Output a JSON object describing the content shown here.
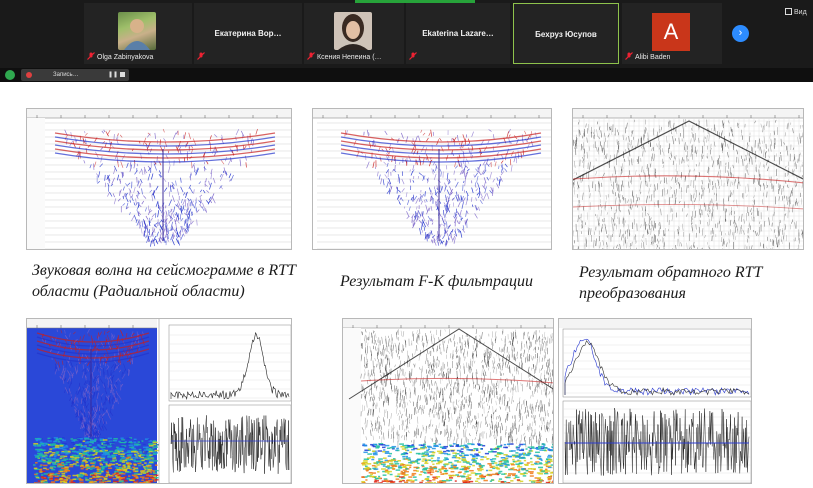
{
  "participants": [
    {
      "name": "Olga Zabinyakova",
      "kind": "photo"
    },
    {
      "name": "Екатерина  Вор…",
      "kind": "name"
    },
    {
      "name": "Ксения Непеина (…",
      "kind": "photo"
    },
    {
      "name": "Ekaterina  Lazare…",
      "kind": "name"
    },
    {
      "name": "Бехруз Юсупов",
      "kind": "name"
    },
    {
      "name": "Alibi Baden",
      "kind": "avatar",
      "initial": "A",
      "color": "#c9361a"
    }
  ],
  "toolbar": {
    "view_label": "Вид",
    "record_label": "Запись…",
    "pause_glyph": "❚❚"
  },
  "slide": {
    "captions": [
      "Звуковая волна на сейсмограмме в RTT области (Радиальной области)",
      "Результат F-K фильтрации",
      "Результат обратного RTT преобразования"
    ]
  },
  "colors": {
    "red": "#c81e1e",
    "blue": "#2233cc",
    "purple": "#7a62c8",
    "accent_blue": "#2d8cff",
    "active_border": "#8ec24c"
  },
  "icons": [
    "mic-muted-icon",
    "chevron-right-icon",
    "grid-view-icon",
    "shield-icon",
    "record-dot-icon",
    "pause-icon",
    "stop-icon"
  ]
}
